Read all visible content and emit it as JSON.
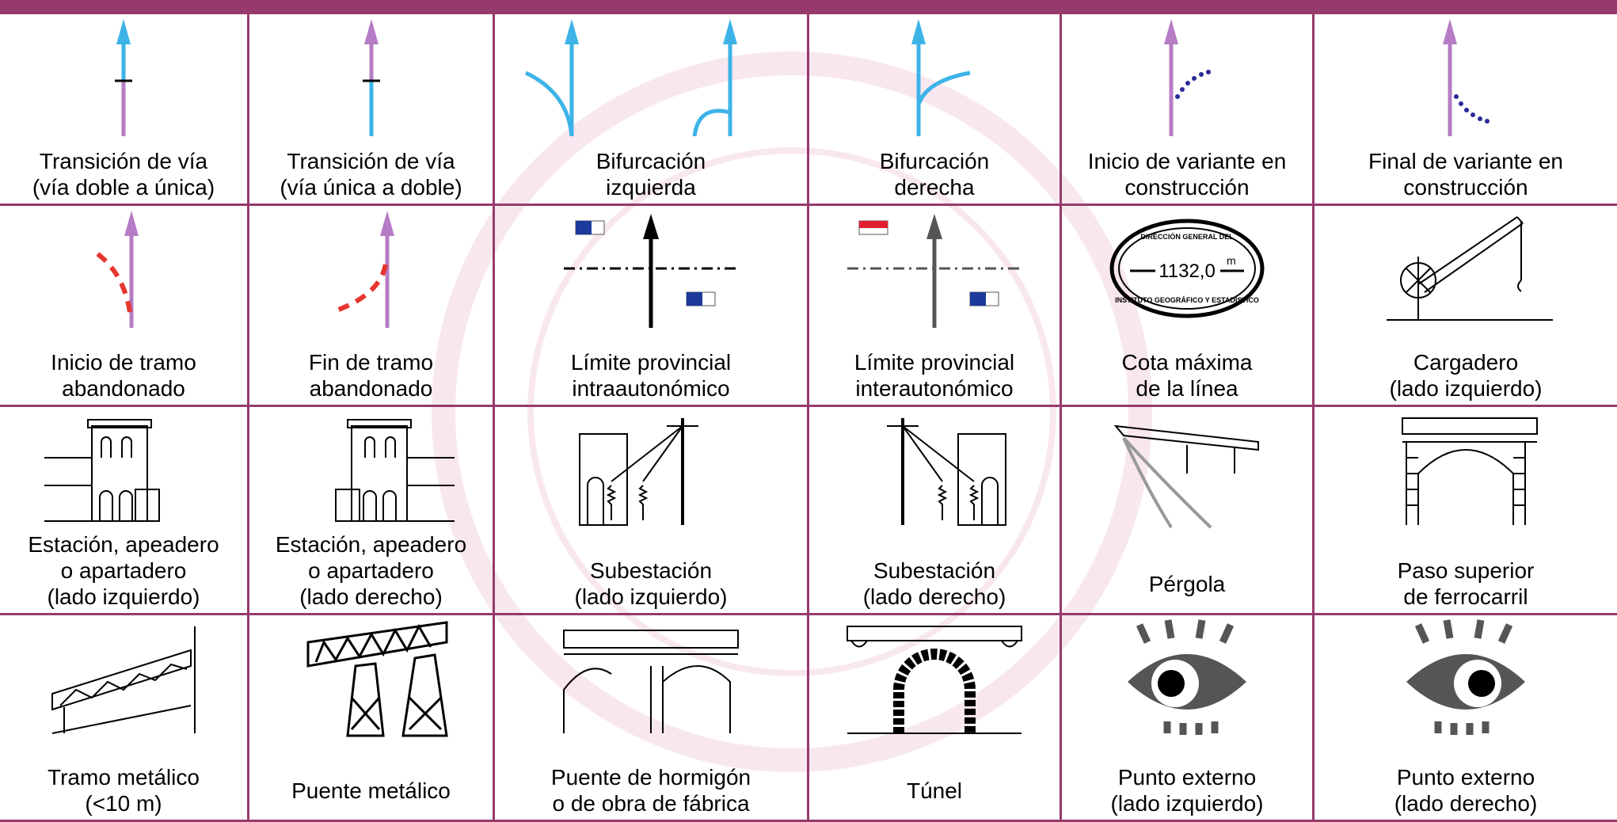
{
  "table": {
    "rows": [
      [
        "Transición de vía\n(vía doble a única)",
        "Transición de vía\n(vía única a doble)",
        "Bifurcación\nizquierda",
        "Bifurcación\nderecha",
        "Inicio de variante en\nconstrucción",
        "Final de variante en\nconstrucción"
      ],
      [
        "Inicio de tramo\nabandonado",
        "Fin de tramo\nabandonado",
        "Límite provincial\nintraautonómico",
        "Límite provincial\ninterautonómico",
        "Cota máxima\nde la línea",
        "Cargadero\n(lado izquierdo)"
      ],
      [
        "Estación, apeadero\no apartadero\n(lado izquierdo)",
        "Estación, apeadero\no apartadero\n(lado derecho)",
        "Subestación\n(lado izquierdo)",
        "Subestación\n(lado derecho)",
        "Pérgola",
        "Paso superior\nde ferrocarril"
      ],
      [
        "Tramo metálico\n(<10 m)",
        "Puente metálico",
        "Puente de hormigón\no de obra de fábrica",
        "Túnel",
        "Punto externo\n(lado izquierdo)",
        "Punto externo\n(lado derecho)"
      ]
    ],
    "stamp": {
      "top": "DIRECCIÓN GENERAL DEL",
      "value": "1132,0",
      "unit": "m",
      "bottom": "INSTITUTO GEOGRÁFICO Y ESTADÍSTICO"
    }
  }
}
